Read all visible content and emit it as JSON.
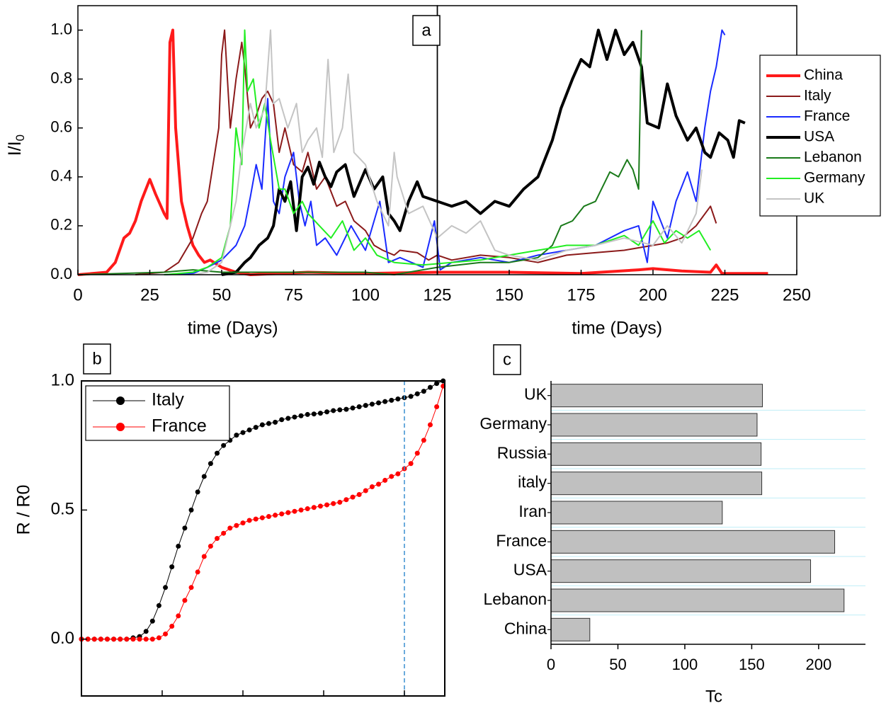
{
  "chart_data": [
    {
      "type": "line",
      "annotation": "a",
      "xlabel": "time (Days)",
      "ylabel": "I/I",
      "ylabel_sub": "0",
      "xlim": [
        0,
        250
      ],
      "xticks": [
        0,
        25,
        50,
        75,
        100,
        125,
        150,
        175,
        200,
        225,
        250
      ],
      "panel_split": 125,
      "ylim": [
        0,
        1.1
      ],
      "yticks": [
        {
          "value": 0,
          "label": "0.0"
        },
        0.2,
        0.4,
        0.6,
        0.8,
        {
          "value": 1,
          "label": "1.0"
        }
      ],
      "series": [
        {
          "name": "China",
          "color": "#ff1a1a",
          "width": 4,
          "x": [
            0,
            10,
            13,
            16,
            18,
            20,
            22,
            25,
            27,
            30,
            31,
            32,
            33,
            34,
            36,
            38,
            40,
            42,
            44,
            46,
            50,
            55,
            60,
            80,
            100,
            125,
            150,
            175,
            195,
            200,
            210,
            220,
            222,
            224,
            240
          ],
          "values": [
            0,
            0.01,
            0.05,
            0.15,
            0.17,
            0.22,
            0.3,
            0.39,
            0.33,
            0.25,
            0.23,
            0.95,
            1.0,
            0.6,
            0.3,
            0.2,
            0.12,
            0.08,
            0.05,
            0.06,
            0.03,
            0.01,
            0,
            0.01,
            0.005,
            0.01,
            0.01,
            0.005,
            0.02,
            0.025,
            0.015,
            0.01,
            0.04,
            0.005,
            0.005
          ]
        },
        {
          "name": "Italy",
          "color": "#8b1a1a",
          "width": 2,
          "x": [
            20,
            30,
            35,
            40,
            43,
            45,
            47,
            49,
            50,
            51,
            52,
            53,
            55,
            57,
            58,
            60,
            62,
            64,
            66,
            68,
            70,
            72,
            75,
            78,
            80,
            83,
            86,
            90,
            93,
            96,
            100,
            103,
            106,
            110,
            112,
            118,
            122,
            125,
            130,
            140,
            150,
            160,
            170,
            180,
            190,
            200,
            205,
            210,
            215,
            220,
            222
          ],
          "values": [
            0,
            0.01,
            0.05,
            0.15,
            0.25,
            0.3,
            0.45,
            0.6,
            0.9,
            1.0,
            0.8,
            0.6,
            0.8,
            0.95,
            0.85,
            0.6,
            0.65,
            0.72,
            0.75,
            0.7,
            0.5,
            0.6,
            0.45,
            0.42,
            0.5,
            0.35,
            0.4,
            0.28,
            0.3,
            0.22,
            0.18,
            0.12,
            0.1,
            0.08,
            0.1,
            0.09,
            0.06,
            0.08,
            0.06,
            0.08,
            0.07,
            0.05,
            0.08,
            0.09,
            0.1,
            0.12,
            0.13,
            0.15,
            0.2,
            0.28,
            0.21
          ]
        },
        {
          "name": "France",
          "color": "#1a2bff",
          "width": 2,
          "x": [
            30,
            40,
            45,
            50,
            55,
            58,
            60,
            62,
            64,
            66,
            68,
            70,
            72,
            75,
            77,
            79,
            81,
            83,
            86,
            90,
            95,
            100,
            105,
            108,
            112,
            120,
            124,
            126,
            130,
            140,
            150,
            160,
            170,
            180,
            190,
            195,
            198,
            200,
            205,
            208,
            212,
            215,
            218,
            220,
            222,
            224,
            225
          ],
          "values": [
            0,
            0.005,
            0.03,
            0.06,
            0.12,
            0.2,
            0.32,
            0.45,
            0.35,
            0.72,
            0.3,
            0.25,
            0.4,
            0.5,
            0.3,
            0.2,
            0.3,
            0.12,
            0.15,
            0.08,
            0.2,
            0.1,
            0.3,
            0.05,
            0.07,
            0.03,
            0.22,
            0.02,
            0.05,
            0.07,
            0.05,
            0.08,
            0.1,
            0.12,
            0.18,
            0.2,
            0.05,
            0.3,
            0.15,
            0.3,
            0.42,
            0.3,
            0.6,
            0.75,
            0.85,
            1.0,
            0.98
          ]
        },
        {
          "name": "USA",
          "color": "#000000",
          "width": 4,
          "x": [
            50,
            55,
            58,
            60,
            63,
            66,
            68,
            70,
            72,
            74,
            76,
            78,
            80,
            82,
            84,
            86,
            88,
            90,
            93,
            96,
            100,
            103,
            106,
            108,
            110,
            112,
            115,
            118,
            120,
            125,
            130,
            135,
            140,
            145,
            150,
            155,
            160,
            165,
            168,
            172,
            175,
            178,
            181,
            184,
            187,
            190,
            193,
            196,
            198,
            202,
            205,
            208,
            212,
            215,
            218,
            220,
            223,
            226,
            228,
            230,
            232
          ],
          "values": [
            0,
            0.01,
            0.05,
            0.07,
            0.12,
            0.15,
            0.2,
            0.35,
            0.3,
            0.38,
            0.18,
            0.4,
            0.44,
            0.37,
            0.46,
            0.4,
            0.36,
            0.42,
            0.45,
            0.32,
            0.43,
            0.35,
            0.4,
            0.25,
            0.22,
            0.18,
            0.3,
            0.38,
            0.32,
            0.3,
            0.28,
            0.3,
            0.25,
            0.3,
            0.28,
            0.35,
            0.4,
            0.55,
            0.68,
            0.8,
            0.88,
            0.85,
            1.0,
            0.88,
            1.0,
            0.9,
            0.95,
            0.85,
            0.62,
            0.6,
            0.78,
            0.65,
            0.55,
            0.6,
            0.5,
            0.48,
            0.58,
            0.55,
            0.48,
            0.63,
            0.62
          ]
        },
        {
          "name": "Lebanon",
          "color": "#1a7a1a",
          "width": 2,
          "x": [
            0,
            30,
            40,
            50,
            60,
            80,
            100,
            110,
            125,
            140,
            150,
            160,
            165,
            168,
            172,
            176,
            180,
            185,
            188,
            191,
            193,
            195,
            196
          ],
          "values": [
            0,
            0.01,
            0.02,
            0.01,
            0.01,
            0.01,
            0.01,
            0,
            0.03,
            0.05,
            0.05,
            0.07,
            0.12,
            0.2,
            0.22,
            0.28,
            0.3,
            0.42,
            0.4,
            0.47,
            0.43,
            0.35,
            1.0
          ]
        },
        {
          "name": "Germany",
          "color": "#22ee22",
          "width": 2,
          "x": [
            30,
            40,
            45,
            50,
            53,
            55,
            57,
            58,
            59,
            61,
            63,
            65,
            67,
            70,
            72,
            75,
            78,
            80,
            84,
            88,
            92,
            96,
            100,
            104,
            110,
            120,
            130,
            140,
            150,
            160,
            170,
            180,
            190,
            195,
            200,
            204,
            208,
            212,
            216,
            220
          ],
          "values": [
            0,
            0.01,
            0.03,
            0.07,
            0.2,
            0.6,
            0.45,
            1.0,
            0.75,
            0.8,
            0.6,
            0.7,
            0.55,
            0.35,
            0.35,
            0.25,
            0.3,
            0.25,
            0.2,
            0.15,
            0.22,
            0.1,
            0.15,
            0.08,
            0.05,
            0.04,
            0.05,
            0.06,
            0.08,
            0.1,
            0.12,
            0.12,
            0.16,
            0.12,
            0.22,
            0.13,
            0.18,
            0.15,
            0.18,
            0.1
          ]
        },
        {
          "name": "UK",
          "color": "#c4c4c4",
          "width": 2,
          "x": [
            40,
            45,
            50,
            55,
            57,
            60,
            62,
            65,
            67,
            68,
            70,
            73,
            76,
            78,
            80,
            83,
            85,
            87,
            89,
            92,
            94,
            96,
            100,
            104,
            108,
            110,
            111,
            115,
            120,
            125,
            130,
            135,
            140,
            145,
            150,
            160,
            170,
            180,
            190,
            200,
            205,
            210,
            215,
            217
          ],
          "values": [
            0,
            0.01,
            0.05,
            0.3,
            0.5,
            0.7,
            0.6,
            0.68,
            1.0,
            0.7,
            0.72,
            0.6,
            0.7,
            0.5,
            0.55,
            0.6,
            0.48,
            0.88,
            0.5,
            0.6,
            0.82,
            0.5,
            0.45,
            0.3,
            0.2,
            0.5,
            0.4,
            0.25,
            0.28,
            0.15,
            0.2,
            0.17,
            0.22,
            0.1,
            0.08,
            0.06,
            0.1,
            0.12,
            0.15,
            0.12,
            0.2,
            0.13,
            0.25,
            0.43
          ]
        }
      ]
    },
    {
      "type": "scatter",
      "annotation": "b",
      "ylabel": "R / R0",
      "legend": "upper-left",
      "xlim": [
        0,
        225
      ],
      "xticks": [
        0,
        50,
        100,
        150,
        200
      ],
      "vline": 200,
      "ylim": [
        -0.22,
        1
      ],
      "yticks": [
        {
          "value": 0,
          "label": "0.0"
        },
        0.5,
        {
          "value": 1,
          "label": "1.0"
        }
      ],
      "x": [
        0,
        4,
        8,
        12,
        16,
        20,
        24,
        28,
        32,
        36,
        40,
        44,
        48,
        52,
        56,
        60,
        64,
        68,
        72,
        76,
        80,
        84,
        88,
        92,
        96,
        100,
        104,
        108,
        112,
        116,
        120,
        124,
        128,
        132,
        136,
        140,
        144,
        148,
        152,
        156,
        160,
        164,
        168,
        172,
        176,
        180,
        184,
        188,
        192,
        196,
        200,
        204,
        208,
        212,
        216,
        220,
        224
      ],
      "series": [
        {
          "name": "Italy",
          "color": "#000000",
          "values": [
            0,
            0,
            0,
            0,
            0,
            0,
            0,
            0,
            0.005,
            0.01,
            0.03,
            0.07,
            0.13,
            0.2,
            0.28,
            0.36,
            0.43,
            0.5,
            0.57,
            0.63,
            0.68,
            0.72,
            0.75,
            0.77,
            0.79,
            0.8,
            0.81,
            0.82,
            0.83,
            0.835,
            0.84,
            0.85,
            0.855,
            0.86,
            0.865,
            0.87,
            0.872,
            0.875,
            0.88,
            0.885,
            0.888,
            0.89,
            0.895,
            0.9,
            0.905,
            0.91,
            0.915,
            0.92,
            0.925,
            0.93,
            0.935,
            0.94,
            0.95,
            0.96,
            0.975,
            0.99,
            1.0
          ]
        },
        {
          "name": "France",
          "color": "#ff0000",
          "values": [
            0,
            0,
            0,
            0,
            0,
            0,
            0,
            0,
            0,
            0,
            0,
            0,
            0.005,
            0.02,
            0.05,
            0.09,
            0.15,
            0.2,
            0.26,
            0.32,
            0.36,
            0.39,
            0.41,
            0.43,
            0.44,
            0.45,
            0.46,
            0.465,
            0.47,
            0.475,
            0.48,
            0.485,
            0.49,
            0.495,
            0.5,
            0.505,
            0.51,
            0.515,
            0.52,
            0.525,
            0.53,
            0.54,
            0.55,
            0.56,
            0.575,
            0.59,
            0.6,
            0.615,
            0.63,
            0.64,
            0.66,
            0.68,
            0.72,
            0.77,
            0.83,
            0.9,
            0.98
          ]
        }
      ]
    },
    {
      "type": "bar",
      "orientation": "horizontal",
      "annotation": "c",
      "xlabel": "Tc",
      "color": "#c0c0c0",
      "grid": true,
      "xlim": [
        0,
        235
      ],
      "xticks": [
        0,
        50,
        100,
        150,
        200
      ],
      "categories": [
        "UK",
        "Germany",
        "Russia",
        "italy",
        "Iran",
        "France",
        "USA",
        "Lebanon",
        "China"
      ],
      "values": [
        158,
        154,
        157,
        157.5,
        128,
        212,
        194,
        219,
        29
      ]
    }
  ]
}
